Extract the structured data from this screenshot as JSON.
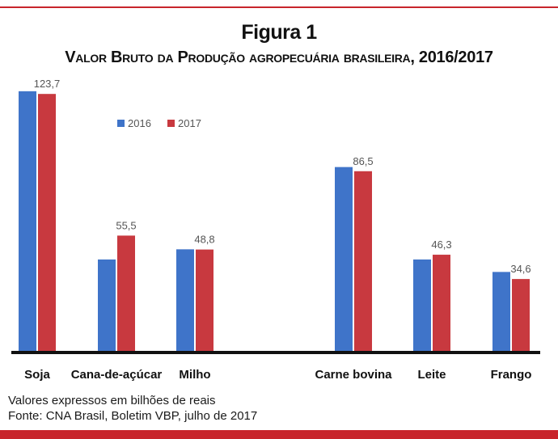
{
  "figure_label": "Figura 1",
  "figure_title": "Valor Bruto da Produção agropecuária brasileira, 2016/2017",
  "notes": {
    "units": "Valores expressos em bilhões de reais",
    "source": "Fonte: CNA Brasil, Boletim VBP, julho de 2017"
  },
  "chart_data": {
    "type": "bar",
    "title": "",
    "xlabel": "",
    "ylabel": "",
    "categories": [
      "Soja",
      "Cana-de-açúcar",
      "Milho",
      "Carne bovina",
      "Leite",
      "Frango"
    ],
    "series": [
      {
        "name": "2016",
        "values": [
          125.0,
          44.0,
          48.9,
          88.5,
          44.0,
          38.0
        ],
        "color": "#3f74c9"
      },
      {
        "name": "2017",
        "values": [
          123.7,
          55.5,
          48.8,
          86.5,
          46.3,
          34.6
        ],
        "color": "#c8393f"
      }
    ],
    "data_labels": [
      "123,7",
      "55,5",
      "48,8",
      "86,5",
      "46,3",
      "34,6"
    ],
    "ylim": [
      0,
      130
    ],
    "grid": false,
    "legend_position": "top-left"
  }
}
